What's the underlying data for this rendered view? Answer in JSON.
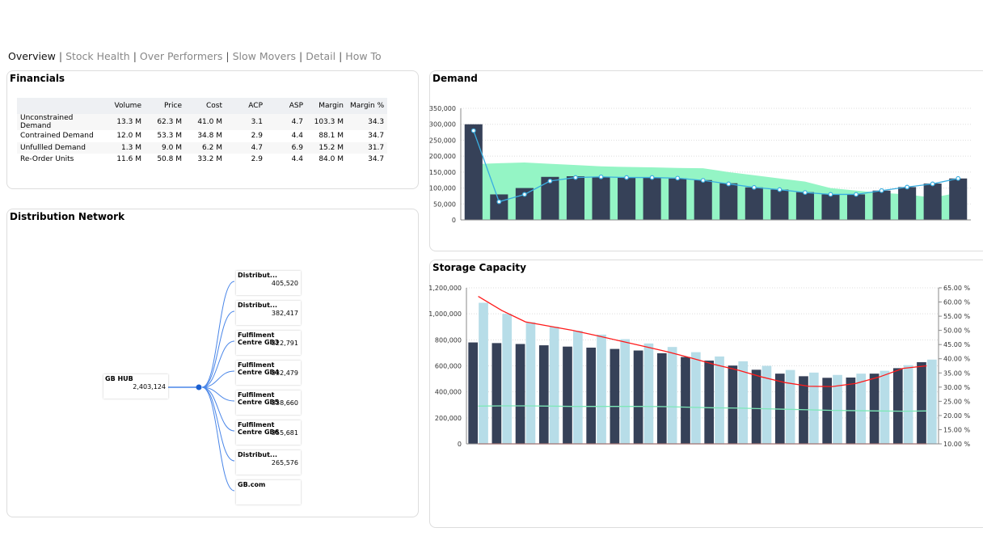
{
  "nav": {
    "tabs": [
      "Overview",
      "Stock Health",
      "Over Performers",
      "Slow Movers",
      "Detail",
      "How To"
    ],
    "active": 0
  },
  "financials": {
    "title": "Financials",
    "columns": [
      "",
      "Volume",
      "Price",
      "Cost",
      "ACP",
      "ASP",
      "Margin",
      "Margin %"
    ],
    "rows": [
      [
        "Unconstrained Demand",
        "13.3 M",
        "62.3 M",
        "41.0 M",
        "3.1",
        "4.7",
        "103.3 M",
        "34.3"
      ],
      [
        "Contrained Demand",
        "12.0 M",
        "53.3 M",
        "34.8 M",
        "2.9",
        "4.4",
        "88.1 M",
        "34.7"
      ],
      [
        "Unfullled Demand",
        "1.3 M",
        "9.0 M",
        "6.2 M",
        "4.7",
        "6.9",
        "15.2 M",
        "31.7"
      ],
      [
        "Re-Order Units",
        "11.6 M",
        "50.8 M",
        "33.2 M",
        "2.9",
        "4.4",
        "84.0 M",
        "34.7"
      ]
    ]
  },
  "network": {
    "title": "Distribution Network",
    "root": {
      "name": "GB HUB",
      "value": "2,403,124"
    },
    "children": [
      {
        "name": "Distribut...",
        "value": "405,520"
      },
      {
        "name": "Distribut...",
        "value": "382,417"
      },
      {
        "name": "Fulfilment Centre GB3",
        "value": "322,791"
      },
      {
        "name": "Fulfilment Centre GB4",
        "value": "332,479"
      },
      {
        "name": "Fulfilment Centre GB5",
        "value": "338,660"
      },
      {
        "name": "Fulfilment Centre GB6",
        "value": "355,681"
      },
      {
        "name": "Distribut...",
        "value": "265,576"
      },
      {
        "name": "GB.com",
        "value": ""
      }
    ],
    "link_color": "#4a86e8"
  },
  "chart_data": [
    {
      "type": "bar",
      "title": "Demand",
      "ylim": [
        0,
        350000
      ],
      "yticks": [
        "0",
        "50,000",
        "100,000",
        "150,000",
        "200,000",
        "250,000",
        "300,000",
        "350,000"
      ],
      "grid": true,
      "series": [
        {
          "type": "area",
          "color": "#94f5c5",
          "values": [
            175000,
            178000,
            180000,
            176000,
            172000,
            168000,
            166000,
            165000,
            163000,
            162000,
            150000,
            140000,
            130000,
            120000,
            100000,
            92000,
            85000,
            80000,
            70000,
            85000
          ]
        },
        {
          "type": "bar",
          "color": "#364158",
          "values": [
            300000,
            80000,
            100000,
            135000,
            137000,
            135000,
            133000,
            133000,
            130000,
            125000,
            115000,
            102000,
            95000,
            87000,
            80000,
            80000,
            92000,
            103000,
            114000,
            130000
          ]
        },
        {
          "type": "line",
          "color": "#3aaee0",
          "values": [
            280000,
            57000,
            80000,
            122000,
            133000,
            135000,
            133000,
            133000,
            131000,
            124000,
            113000,
            102000,
            95000,
            86000,
            80000,
            80000,
            92000,
            103000,
            113000,
            130000
          ]
        }
      ]
    },
    {
      "type": "bar",
      "title": "Storage Capacity",
      "ylim": [
        0,
        1200000
      ],
      "y2lim": [
        10,
        65
      ],
      "yticks": [
        "0",
        "200,000",
        "400,000",
        "600,000",
        "800,000",
        "1,000,000",
        "1,200,000"
      ],
      "y2ticks": [
        "10.00 %",
        "15.00 %",
        "20.00 %",
        "25.00 %",
        "30.00 %",
        "35.00 %",
        "40.00 %",
        "45.00 %",
        "50.00 %",
        "55.00 %",
        "60.00 %",
        "65.00 %"
      ],
      "grid": true,
      "series": [
        {
          "type": "bar",
          "color": "#364158",
          "values": [
            780000,
            775000,
            768000,
            758000,
            748000,
            740000,
            730000,
            718000,
            697000,
            668000,
            640000,
            602000,
            570000,
            540000,
            520000,
            508000,
            510000,
            540000,
            582000,
            628000
          ]
        },
        {
          "type": "bar",
          "color": "#b7dde8",
          "values": [
            1085000,
            1000000,
            935000,
            900000,
            870000,
            840000,
            805000,
            772000,
            745000,
            705000,
            672000,
            635000,
            600000,
            568000,
            548000,
            530000,
            540000,
            562000,
            605000,
            648000
          ]
        },
        {
          "type": "line",
          "axis": "y2",
          "color": "#ff1a1a",
          "values": [
            62,
            57,
            53,
            51.5,
            50,
            48.2,
            46.3,
            44.4,
            42.5,
            40.3,
            38,
            36,
            33.6,
            31.6,
            30.3,
            30.2,
            31.3,
            33.6,
            36.6,
            37.5
          ]
        },
        {
          "type": "line",
          "axis": "y2",
          "color": "#7ee8b8",
          "values": [
            23.3,
            23.4,
            23.4,
            23.3,
            23.2,
            23.2,
            23.2,
            23.2,
            23.1,
            22.9,
            22.7,
            22.6,
            22.4,
            22.2,
            22,
            21.8,
            21.7,
            21.6,
            21.5,
            21.6
          ]
        },
        {
          "type": "line",
          "axis": "y2",
          "color": "#ff1a1a",
          "values": [
            10,
            10,
            10,
            10,
            10,
            10,
            10,
            10,
            10,
            10,
            10,
            10,
            10,
            10,
            10,
            10,
            10,
            10,
            10,
            10
          ]
        }
      ]
    }
  ]
}
